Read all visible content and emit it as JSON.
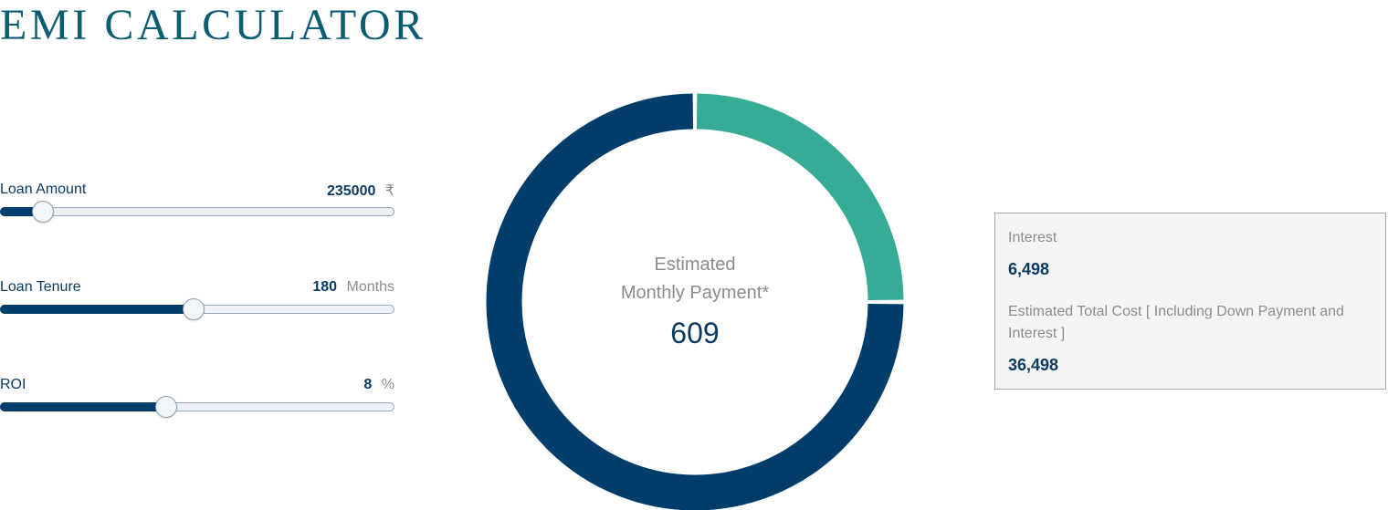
{
  "title": "EMI CALCULATOR",
  "sliders": [
    {
      "label": "Loan Amount",
      "value": "235000",
      "unit": "₹",
      "fill_fraction": 0.107
    },
    {
      "label": "Loan Tenure",
      "value": "180",
      "unit": "Months",
      "fill_fraction": 0.49
    },
    {
      "label": "ROI",
      "value": "8",
      "unit": "%",
      "fill_fraction": 0.42
    }
  ],
  "donut": {
    "center_label_line1": "Estimated",
    "center_label_line2": "Monthly Payment*",
    "center_value": "609",
    "principal_color": "#003d6b",
    "interest_color": "#36ac96",
    "interest_fraction": 0.25
  },
  "summary": {
    "interest_label": "Interest",
    "interest_value": "6,498",
    "total_label": "Estimated Total Cost [ Including Down Payment and Interest ]",
    "total_value": "36,498"
  }
}
